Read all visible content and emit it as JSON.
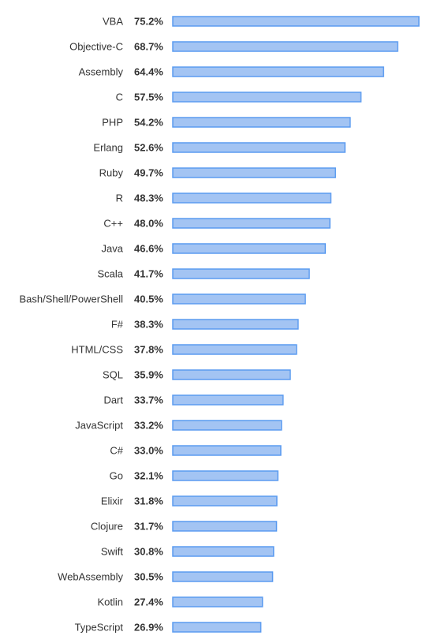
{
  "chart_data": {
    "type": "bar",
    "orientation": "horizontal",
    "title": "",
    "xlabel": "",
    "ylabel": "",
    "value_suffix": "%",
    "xlim": [
      0,
      75.2
    ],
    "grid": false,
    "legend": "none",
    "colors": {
      "bar_fill": "#a3c4f3",
      "bar_stroke": "#5b9bf0",
      "label_text": "#333333"
    },
    "categories": [
      "VBA",
      "Objective-C",
      "Assembly",
      "C",
      "PHP",
      "Erlang",
      "Ruby",
      "R",
      "C++",
      "Java",
      "Scala",
      "Bash/Shell/PowerShell",
      "F#",
      "HTML/CSS",
      "SQL",
      "Dart",
      "JavaScript",
      "C#",
      "Go",
      "Elixir",
      "Clojure",
      "Swift",
      "WebAssembly",
      "Kotlin",
      "TypeScript"
    ],
    "values": [
      75.2,
      68.7,
      64.4,
      57.5,
      54.2,
      52.6,
      49.7,
      48.3,
      48.0,
      46.6,
      41.7,
      40.5,
      38.3,
      37.8,
      35.9,
      33.7,
      33.2,
      33.0,
      32.1,
      31.8,
      31.7,
      30.8,
      30.5,
      27.4,
      26.9
    ],
    "value_labels": [
      "75.2%",
      "68.7%",
      "64.4%",
      "57.5%",
      "54.2%",
      "52.6%",
      "49.7%",
      "48.3%",
      "48.0%",
      "46.6%",
      "41.7%",
      "40.5%",
      "38.3%",
      "37.8%",
      "35.9%",
      "33.7%",
      "33.2%",
      "33.0%",
      "32.1%",
      "31.8%",
      "31.7%",
      "30.8%",
      "30.5%",
      "27.4%",
      "26.9%"
    ]
  }
}
